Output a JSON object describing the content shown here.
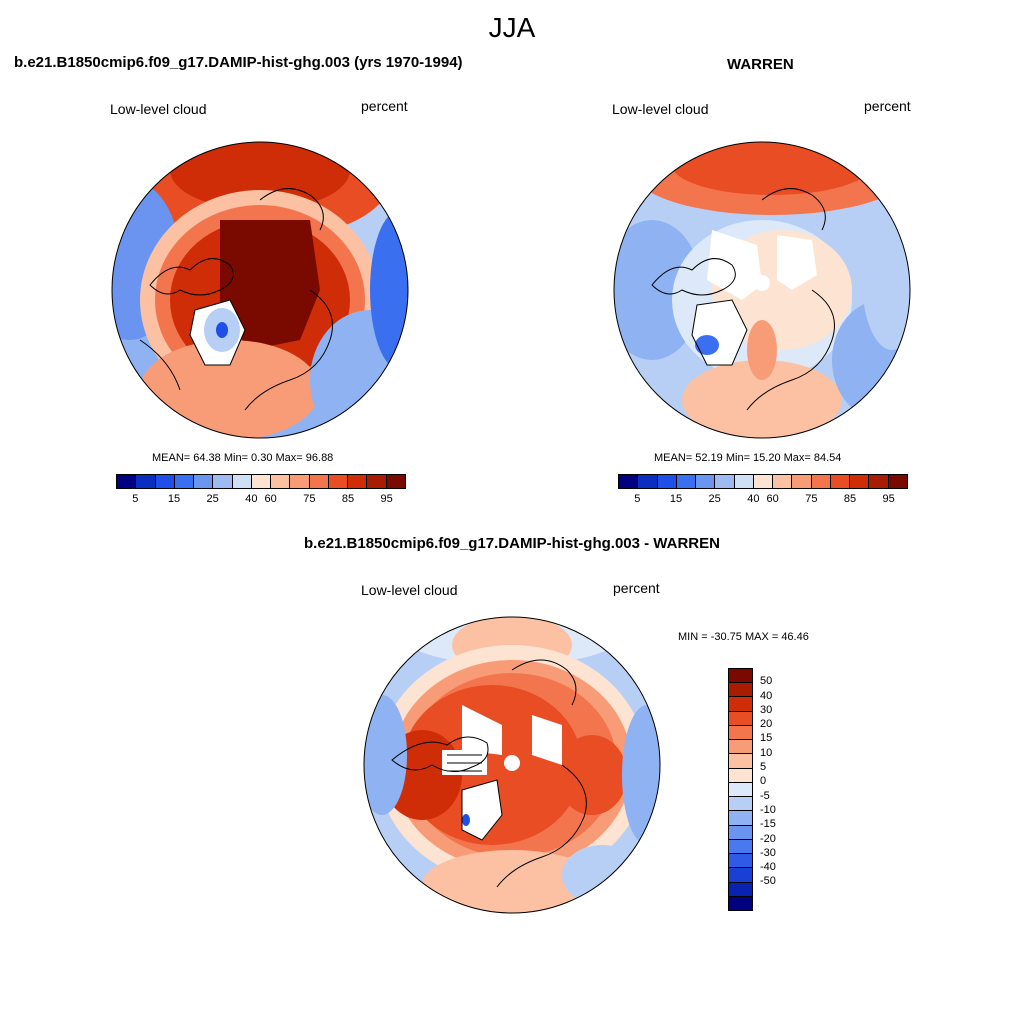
{
  "season": "JJA",
  "panel_left": {
    "title": "b.e21.B1850cmip6.f09_g17.DAMIP-hist-ghg.003 (yrs 1970-1994)",
    "variable": "Low-level cloud",
    "units": "percent",
    "stats": "MEAN=  64.38  Min=   0.30  Max=  96.88"
  },
  "panel_right": {
    "title": "WARREN",
    "variable": "Low-level cloud",
    "units": "percent",
    "stats": "MEAN=  52.19  Min=  15.20  Max=  84.54"
  },
  "panel_diff": {
    "title": "b.e21.B1850cmip6.f09_g17.DAMIP-hist-ghg.003 - WARREN",
    "variable": "Low-level cloud",
    "units": "percent",
    "stats": "MIN = -30.75 MAX =  46.46"
  },
  "abs_colorbar": {
    "colors": [
      "#000080",
      "#0a2fc0",
      "#1f4fe8",
      "#3a70f0",
      "#6b96f0",
      "#9dbbf2",
      "#cfe0f6",
      "#fde3d2",
      "#fbc1a2",
      "#f89c78",
      "#f3754e",
      "#e84d24",
      "#cf2c08",
      "#a81c02",
      "#7a0a00"
    ],
    "tick_labels": [
      "5",
      "15",
      "25",
      "40",
      "60",
      "75",
      "85",
      "95"
    ]
  },
  "diff_colorbar": {
    "colors": [
      "#7a0a00",
      "#a81c02",
      "#cf2c08",
      "#e84d24",
      "#f3754e",
      "#f89c78",
      "#fbc1a2",
      "#fde3d2",
      "#dde9f8",
      "#b8cff5",
      "#8fb2f2",
      "#6a94f0",
      "#4a78f0",
      "#2f5ae8",
      "#1a3fd4",
      "#0a22b0",
      "#000080"
    ],
    "tick_labels": [
      "50",
      "40",
      "30",
      "20",
      "15",
      "10",
      "5",
      "0",
      "-5",
      "-10",
      "-15",
      "-20",
      "-30",
      "-40",
      "-50"
    ]
  }
}
